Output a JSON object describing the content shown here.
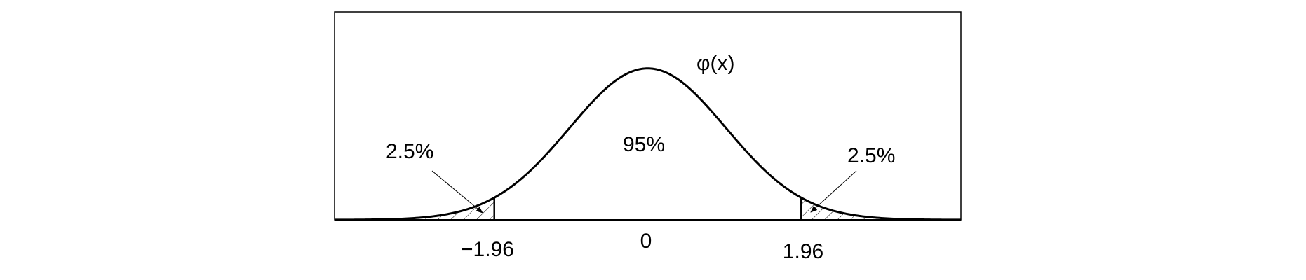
{
  "chart_data": {
    "type": "line",
    "function_label": "φ(x)",
    "center_label": "95%",
    "left_tail_label": "2.5%",
    "right_tail_label": "2.5%",
    "x_ticks": [
      {
        "value": -1.96,
        "label": "−1.96"
      },
      {
        "value": 0,
        "label": "0"
      },
      {
        "value": 1.96,
        "label": "1.96"
      }
    ],
    "xlim": [
      -4,
      4
    ],
    "ylim": [
      0,
      0.4
    ],
    "series": [
      {
        "type": "density",
        "distribution": "standard normal",
        "mean": 0,
        "sd": 1
      }
    ],
    "shaded_tails": [
      {
        "from": -4,
        "to": -1.96,
        "area": 0.025
      },
      {
        "from": 1.96,
        "to": 4,
        "area": 0.025
      }
    ],
    "grid": false,
    "colors": {
      "line": "#000000",
      "background": "#ffffff"
    }
  }
}
